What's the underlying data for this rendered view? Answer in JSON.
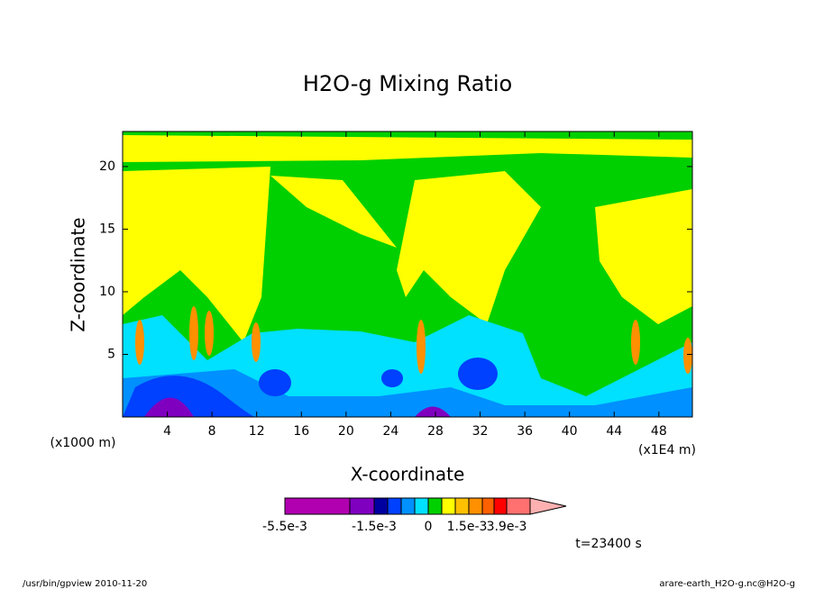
{
  "chart_data": {
    "type": "contour",
    "title": "H2O-g Mixing Ratio",
    "xlabel": "X-coordinate",
    "ylabel": "Z-coordinate",
    "x_unit_left": "(x1000 m)",
    "x_unit_right": "(x1E4 m)",
    "xlim": [
      0,
      51
    ],
    "ylim": [
      0,
      22.8
    ],
    "xticks": [
      4,
      8,
      12,
      16,
      20,
      24,
      28,
      32,
      36,
      40,
      44,
      48
    ],
    "yticks": [
      5,
      10,
      15,
      20
    ],
    "colorbar": {
      "colors": [
        "#b000b0",
        "#8000c0",
        "#0000a0",
        "#0040ff",
        "#0090ff",
        "#00e0ff",
        "#00d000",
        "#ffff00",
        "#ffc000",
        "#ff9000",
        "#ff6000",
        "#ff0000",
        "#ff7070",
        "#ffb0b0"
      ],
      "tick_labels": [
        "-5.5e-3",
        "-1.5e-3",
        "0",
        "1.5e-3",
        "3.9e-3"
      ]
    },
    "time_label": "t=23400 s",
    "footer_left": "/usr/bin/gpview  2010-11-20",
    "footer_right": "arare-earth_H2O-g.nc@H2O-g"
  }
}
